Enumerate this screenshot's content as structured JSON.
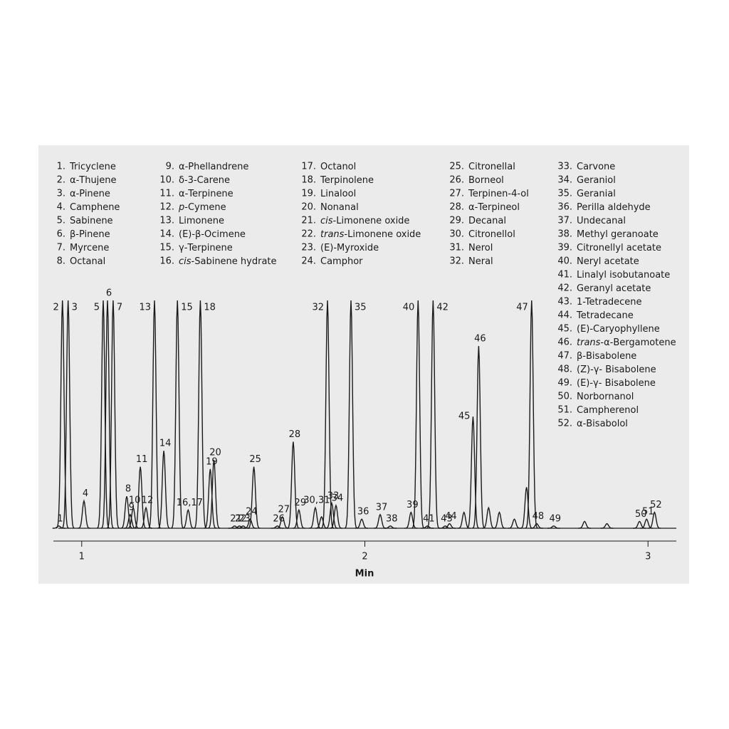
{
  "chart_data": {
    "type": "chromatogram",
    "legend": [
      {
        "number": "1.",
        "name": "Tricyclene"
      },
      {
        "number": "2.",
        "name": "α-Thujene"
      },
      {
        "number": "3.",
        "name": "α-Pinene"
      },
      {
        "number": "4.",
        "name": "Camphene"
      },
      {
        "number": "5.",
        "name": "Sabinene"
      },
      {
        "number": "6.",
        "name": "β-Pinene"
      },
      {
        "number": "7.",
        "name": "Myrcene"
      },
      {
        "number": "8.",
        "name": "Octanal"
      },
      {
        "number": "9.",
        "name": "α-Phellandrene"
      },
      {
        "number": "10.",
        "name": "δ-3-Carene"
      },
      {
        "number": "11.",
        "name": "α-Terpinene"
      },
      {
        "number": "12.",
        "italic": "p",
        "name": "-Cymene"
      },
      {
        "number": "13.",
        "name": "Limonene"
      },
      {
        "number": "14.",
        "name": "(E)-β-Ocimene"
      },
      {
        "number": "15.",
        "name": "γ-Terpinene"
      },
      {
        "number": "16.",
        "italic": "cis",
        "name": "-Sabinene hydrate"
      },
      {
        "number": "17.",
        "name": "Octanol"
      },
      {
        "number": "18.",
        "name": "Terpinolene"
      },
      {
        "number": "19.",
        "name": "Linalool"
      },
      {
        "number": "20.",
        "name": "Nonanal"
      },
      {
        "number": "21.",
        "italic": "cis",
        "name": "-Limonene oxide"
      },
      {
        "number": "22.",
        "italic": "trans",
        "name": "-Limonene oxide"
      },
      {
        "number": "23.",
        "name": "(E)-Myroxide"
      },
      {
        "number": "24.",
        "name": "Camphor"
      },
      {
        "number": "25.",
        "name": "Citronellal"
      },
      {
        "number": "26.",
        "name": "Borneol"
      },
      {
        "number": "27.",
        "name": "Terpinen-4-ol"
      },
      {
        "number": "28.",
        "name": "α-Terpineol"
      },
      {
        "number": "29.",
        "name": "Decanal"
      },
      {
        "number": "30.",
        "name": "Citronellol"
      },
      {
        "number": "31.",
        "name": "Nerol"
      },
      {
        "number": "32.",
        "name": "Neral"
      },
      {
        "number": "33.",
        "name": "Carvone"
      },
      {
        "number": "34.",
        "name": "Geraniol"
      },
      {
        "number": "35.",
        "name": "Geranial"
      },
      {
        "number": "36.",
        "name": "Perilla aldehyde"
      },
      {
        "number": "37.",
        "name": "Undecanal"
      },
      {
        "number": "38.",
        "name": "Methyl geranoate"
      },
      {
        "number": "39.",
        "name": "Citronellyl acetate"
      },
      {
        "number": "40.",
        "name": "Neryl acetate"
      },
      {
        "number": "41.",
        "name": "Linalyl isobutanoate"
      },
      {
        "number": "42.",
        "name": "Geranyl acetate"
      },
      {
        "number": "43.",
        "name": "1-Tetradecene"
      },
      {
        "number": "44.",
        "name": "Tetradecane"
      },
      {
        "number": "45.",
        "name": "(E)-Caryophyllene"
      },
      {
        "number": "46.",
        "italic": "trans",
        "name": "-α-Bergamotene"
      },
      {
        "number": "47.",
        "name": "β-Bisabolene"
      },
      {
        "number": "48.",
        "name": "(Z)-γ- Bisabolene"
      },
      {
        "number": "49.",
        "name": "(E)-γ- Bisabolene"
      },
      {
        "number": "50.",
        "name": "Norbornanol"
      },
      {
        "number": "51.",
        "name": "Campherenol"
      },
      {
        "number": "52.",
        "name": "α-Bisabolol"
      }
    ],
    "peak_labels": [
      "1",
      "2",
      "3",
      "4",
      "5",
      "6",
      "7",
      "8",
      "9",
      "10",
      "11",
      "12",
      "13",
      "14",
      "15",
      "16,17",
      "18",
      "19",
      "20",
      "21",
      "22",
      "23",
      "24",
      "25",
      "26",
      "27",
      "28",
      "29",
      "30,31",
      "32",
      "33",
      "34",
      "35",
      "36",
      "37",
      "38",
      "39",
      "40",
      "41",
      "42",
      "43",
      "44",
      "45",
      "46",
      "47",
      "48",
      "49",
      "50",
      "51",
      "52",
      null,
      null,
      null,
      null,
      null,
      null,
      null,
      null
    ],
    "peak_x": [
      0.919,
      0.932,
      0.952,
      1.008,
      1.076,
      1.091,
      1.111,
      1.159,
      1.171,
      1.182,
      1.207,
      1.227,
      1.257,
      1.29,
      1.338,
      1.376,
      1.419,
      1.454,
      1.467,
      1.54,
      1.557,
      1.57,
      1.595,
      1.608,
      1.691,
      1.709,
      1.747,
      1.767,
      1.825,
      1.868,
      1.883,
      1.898,
      1.951,
      1.989,
      2.054,
      2.09,
      2.163,
      2.188,
      2.221,
      2.241,
      2.284,
      2.299,
      2.382,
      2.402,
      2.589,
      2.607,
      2.667,
      2.97,
      2.995,
      3.023,
      1.847,
      2.35,
      2.437,
      2.475,
      2.528,
      2.571,
      2.776,
      2.855
    ],
    "peak_heights": [
      1,
      100,
      100,
      12,
      100,
      100,
      100,
      14,
      6,
      9,
      27,
      9,
      100,
      34,
      100,
      8,
      100,
      26,
      30,
      1,
      1,
      1,
      4,
      27,
      1,
      5,
      38,
      8,
      9,
      100,
      11,
      10,
      100,
      4,
      6,
      1,
      7,
      100,
      1,
      100,
      1,
      2,
      49,
      80,
      100,
      2,
      1,
      3,
      4,
      7,
      5,
      7,
      9,
      7,
      4,
      18,
      3,
      2
    ],
    "xlabel": "Min",
    "xlim": [
      0.9,
      3.1
    ],
    "xticks": [
      1,
      2,
      3
    ],
    "ylim": [
      0,
      100
    ],
    "color": "#1a1a1a"
  }
}
